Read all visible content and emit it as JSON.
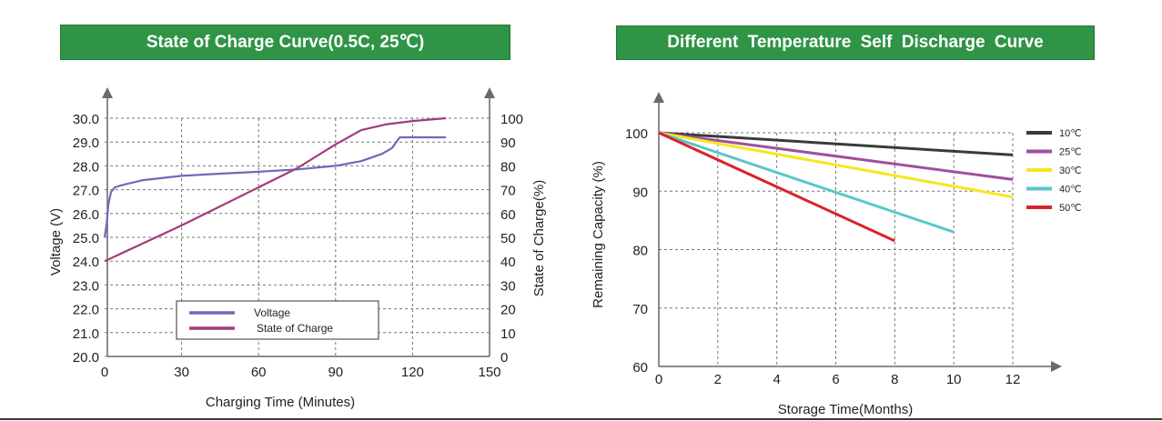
{
  "chart_data": [
    {
      "type": "line",
      "title": "State of Charge Curve(0.5C, 25℃)",
      "xlabel": "Charging Time (Minutes)",
      "ylabel": "Voltage (V)",
      "y2label": "State of Charge(%)",
      "xlim": [
        0,
        150
      ],
      "ylim": [
        20.0,
        30.0
      ],
      "y2lim": [
        0,
        100
      ],
      "xticks": [
        "0",
        "30",
        "60",
        "90",
        "120",
        "150"
      ],
      "yticks": [
        "20.0",
        "21.0",
        "22.0",
        "23.0",
        "24.0",
        "25.0",
        "26.0",
        "27.0",
        "28.0",
        "29.0",
        "30.0"
      ],
      "y2ticks": [
        "0",
        "10",
        "20",
        "30",
        "40",
        "50",
        "60",
        "70",
        "80",
        "90",
        "100"
      ],
      "grid": true,
      "legend": "bottom-center",
      "series": [
        {
          "name": "Voltage",
          "axis": "left",
          "color": "#6e6bb8",
          "points": [
            [
              0,
              25.0
            ],
            [
              0.8,
              25.6
            ],
            [
              1.5,
              26.4
            ],
            [
              2.5,
              26.9
            ],
            [
              4,
              27.1
            ],
            [
              7,
              27.2
            ],
            [
              15,
              27.4
            ],
            [
              30,
              27.58
            ],
            [
              45,
              27.67
            ],
            [
              60,
              27.75
            ],
            [
              75,
              27.85
            ],
            [
              90,
              28.0
            ],
            [
              100,
              28.2
            ],
            [
              108,
              28.5
            ],
            [
              112,
              28.75
            ],
            [
              115,
              29.2
            ],
            [
              116,
              29.2
            ],
            [
              133,
              29.2
            ]
          ]
        },
        {
          "name": "State of Charge",
          "axis": "right",
          "color": "#a23b7d",
          "points": [
            [
              0,
              40
            ],
            [
              30,
              55
            ],
            [
              60,
              71
            ],
            [
              75,
              79
            ],
            [
              90,
              89
            ],
            [
              100,
              95
            ],
            [
              110,
              97.5
            ],
            [
              120,
              98.8
            ],
            [
              133,
              100
            ]
          ]
        }
      ]
    },
    {
      "type": "line",
      "title": "Different Temperature Self Discharge Curve",
      "xlabel": "Storage Time(Months)",
      "ylabel": "Remaining Capacity (%)",
      "xlim": [
        0,
        12
      ],
      "ylim": [
        60,
        100
      ],
      "xticks": [
        "0",
        "2",
        "4",
        "6",
        "8",
        "10",
        "12"
      ],
      "yticks": [
        "60",
        "70",
        "80",
        "90",
        "100"
      ],
      "grid": true,
      "legend": "top-right",
      "series": [
        {
          "name": "10℃",
          "color": "#3a3a3a",
          "points": [
            [
              0,
              100
            ],
            [
              12,
              96.2
            ]
          ]
        },
        {
          "name": "25℃",
          "color": "#a24ea0",
          "points": [
            [
              0,
              100
            ],
            [
              12,
              92
            ]
          ]
        },
        {
          "name": "30℃",
          "color": "#f5e81c",
          "points": [
            [
              0,
              100
            ],
            [
              12,
              89
            ]
          ]
        },
        {
          "name": "40℃",
          "color": "#5cc5cc",
          "points": [
            [
              0,
              100
            ],
            [
              10,
              83
            ]
          ]
        },
        {
          "name": "50℃",
          "color": "#d8232a",
          "points": [
            [
              0,
              100
            ],
            [
              8,
              81.5
            ]
          ]
        }
      ]
    }
  ]
}
